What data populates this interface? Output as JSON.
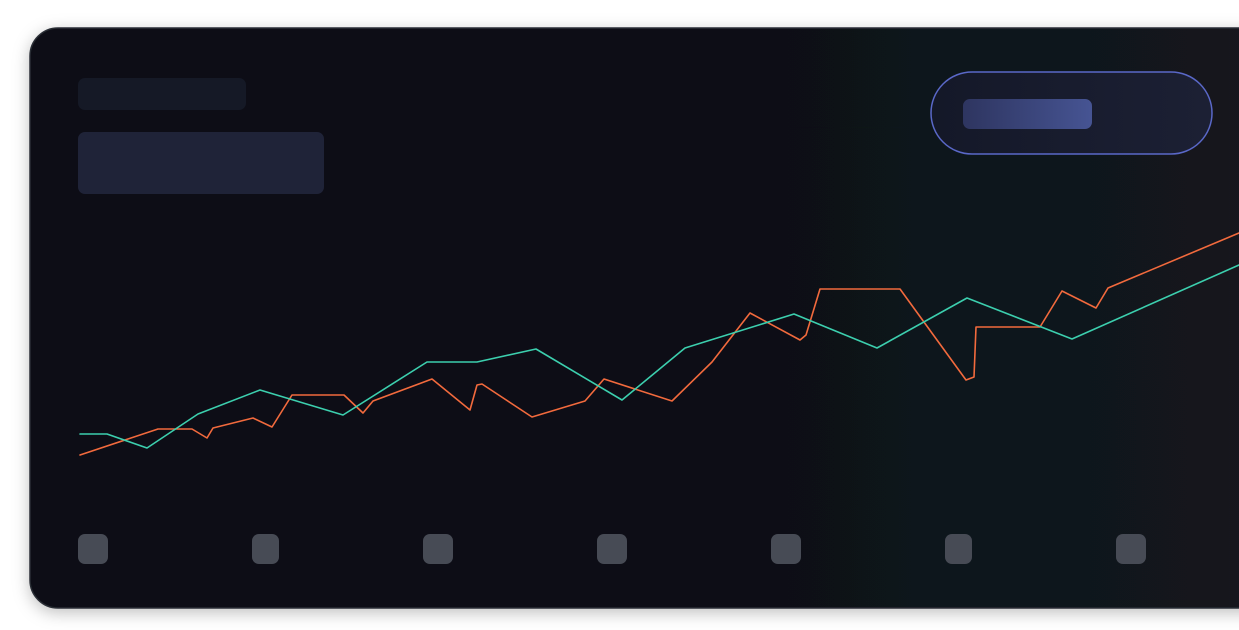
{
  "chart_data": {
    "type": "line",
    "xlim": [
      0,
      1159
    ],
    "ylim": [
      0,
      300
    ],
    "series": [
      {
        "color": "#f26a3d",
        "x": [
          0,
          78,
          112,
          127,
          133,
          173,
          192,
          212,
          264,
          283,
          293,
          352,
          390,
          397,
          402,
          452,
          505,
          524,
          592,
          632,
          670,
          720,
          726,
          740,
          820,
          886,
          894,
          896,
          960,
          982,
          1016,
          1028,
          1159
        ],
        "values": [
          45,
          71,
          71,
          62,
          72,
          82,
          73,
          105,
          105,
          87,
          99,
          121,
          90,
          115,
          116,
          83,
          99,
          121,
          99,
          138,
          187,
          160,
          165,
          211,
          211,
          120,
          123,
          173,
          173,
          209,
          192,
          212,
          267
        ]
      },
      {
        "color": "#3ccfae",
        "x": [
          0,
          27,
          67,
          118,
          180,
          263,
          347,
          397,
          456,
          542,
          605,
          714,
          797,
          887,
          992,
          1159
        ],
        "values": [
          66,
          66,
          52,
          86,
          110,
          85,
          138,
          138,
          151,
          100,
          152,
          186,
          152,
          202,
          161,
          235
        ]
      }
    ]
  }
}
